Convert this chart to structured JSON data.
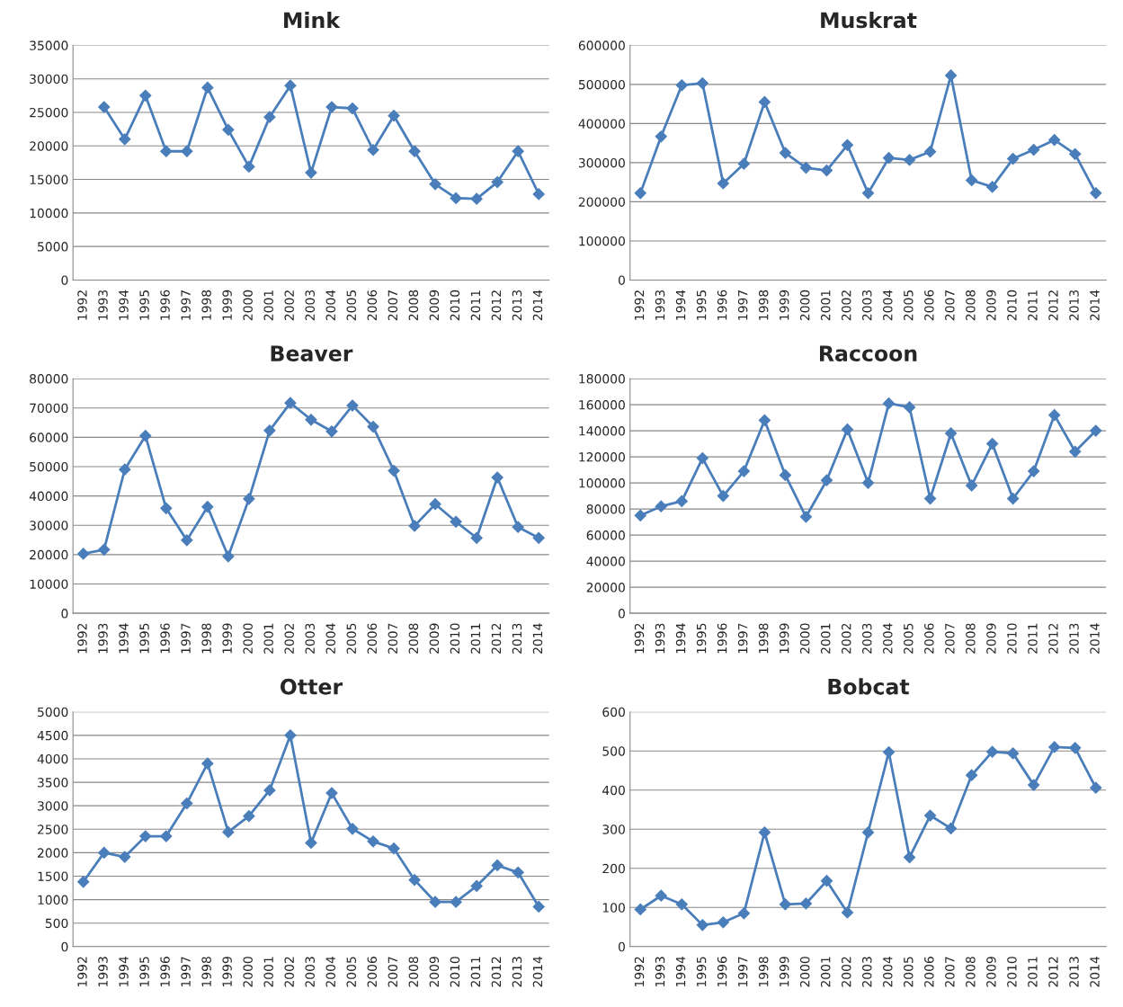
{
  "chart_data": [
    {
      "type": "line",
      "title": "Mink",
      "categories": [
        "1992",
        "1993",
        "1994",
        "1995",
        "1996",
        "1997",
        "1998",
        "1999",
        "2000",
        "2001",
        "2002",
        "2003",
        "2004",
        "2005",
        "2006",
        "2007",
        "2008",
        "2009",
        "2010",
        "2011",
        "2012",
        "2013",
        "2014"
      ],
      "series": [
        {
          "color": "#4a7ebb",
          "values": [
            null,
            25800,
            21000,
            27500,
            19200,
            19200,
            28700,
            22400,
            16900,
            24300,
            29000,
            16000,
            25800,
            25600,
            19400,
            24500,
            19200,
            14300,
            12200,
            12100,
            14600,
            19200,
            12800
          ]
        }
      ],
      "ylim": [
        0,
        35000
      ],
      "yticks": [
        0,
        5000,
        10000,
        15000,
        20000,
        25000,
        30000,
        35000
      ],
      "grid": "y",
      "marker": "diamond",
      "line_style": "solid"
    },
    {
      "type": "line",
      "title": "Muskrat",
      "categories": [
        "1992",
        "1993",
        "1994",
        "1995",
        "1996",
        "1997",
        "1998",
        "1999",
        "2000",
        "2001",
        "2002",
        "2003",
        "2004",
        "2005",
        "2006",
        "2007",
        "2008",
        "2009",
        "2010",
        "2011",
        "2012",
        "2013",
        "2014"
      ],
      "series": [
        {
          "color": "#4a7ebb",
          "values": [
            222000,
            367000,
            498000,
            503000,
            247000,
            297000,
            455000,
            325000,
            287000,
            280000,
            345000,
            222000,
            312000,
            307000,
            328000,
            523000,
            255000,
            238000,
            310000,
            333000,
            358000,
            322000,
            222000
          ]
        }
      ],
      "ylim": [
        0,
        600000
      ],
      "yticks": [
        0,
        100000,
        200000,
        300000,
        400000,
        500000,
        600000
      ],
      "grid": "y",
      "marker": "diamond",
      "line_style": "solid"
    },
    {
      "type": "line",
      "title": "Beaver",
      "categories": [
        "1992",
        "1993",
        "1994",
        "1995",
        "1996",
        "1997",
        "1998",
        "1999",
        "2000",
        "2001",
        "2002",
        "2003",
        "2004",
        "2005",
        "2006",
        "2007",
        "2008",
        "2009",
        "2010",
        "2011",
        "2012",
        "2013",
        "2014"
      ],
      "series": [
        {
          "color": "#4a7ebb",
          "values": [
            20300,
            21700,
            49000,
            60500,
            35800,
            24900,
            36300,
            19400,
            39000,
            62300,
            71700,
            66000,
            62000,
            70800,
            63600,
            48600,
            29800,
            37200,
            31200,
            25700,
            46300,
            29400,
            25700
          ]
        }
      ],
      "ylim": [
        0,
        80000
      ],
      "yticks": [
        0,
        10000,
        20000,
        30000,
        40000,
        50000,
        60000,
        70000,
        80000
      ],
      "grid": "y",
      "marker": "diamond",
      "line_style": "solid"
    },
    {
      "type": "line",
      "title": "Raccoon",
      "categories": [
        "1992",
        "1993",
        "1994",
        "1995",
        "1996",
        "1997",
        "1998",
        "1999",
        "2000",
        "2001",
        "2002",
        "2003",
        "2004",
        "2005",
        "2006",
        "2007",
        "2008",
        "2009",
        "2010",
        "2011",
        "2012",
        "2013",
        "2014"
      ],
      "series": [
        {
          "color": "#4a7ebb",
          "values": [
            75000,
            82000,
            86000,
            119000,
            90000,
            109000,
            148000,
            106000,
            74000,
            102000,
            141000,
            100000,
            161000,
            158000,
            88000,
            138000,
            98000,
            130000,
            88000,
            109000,
            152000,
            124000,
            140000
          ]
        }
      ],
      "ylim": [
        0,
        180000
      ],
      "yticks": [
        0,
        20000,
        40000,
        60000,
        80000,
        100000,
        120000,
        140000,
        160000,
        180000
      ],
      "grid": "y",
      "marker": "diamond",
      "line_style": "solid"
    },
    {
      "type": "line",
      "title": "Otter",
      "categories": [
        "1992",
        "1993",
        "1994",
        "1995",
        "1996",
        "1997",
        "1998",
        "1999",
        "2000",
        "2001",
        "2002",
        "2003",
        "2004",
        "2005",
        "2006",
        "2007",
        "2008",
        "2009",
        "2010",
        "2011",
        "2012",
        "2013",
        "2014"
      ],
      "series": [
        {
          "color": "#4a7ebb",
          "values": [
            1380,
            2000,
            1910,
            2350,
            2350,
            3050,
            3900,
            2440,
            2780,
            3330,
            4500,
            2210,
            3270,
            2510,
            2240,
            2090,
            1420,
            950,
            950,
            1290,
            1730,
            1580,
            850
          ]
        }
      ],
      "ylim": [
        0,
        5000
      ],
      "yticks": [
        0,
        500,
        1000,
        1500,
        2000,
        2500,
        3000,
        3500,
        4000,
        4500,
        5000
      ],
      "grid": "y",
      "marker": "diamond",
      "line_style": "solid"
    },
    {
      "type": "line",
      "title": "Bobcat",
      "categories": [
        "1992",
        "1993",
        "1994",
        "1995",
        "1996",
        "1997",
        "1998",
        "1999",
        "2000",
        "2001",
        "2002",
        "2003",
        "2004",
        "2005",
        "2006",
        "2007",
        "2008",
        "2009",
        "2010",
        "2011",
        "2012",
        "2013",
        "2014"
      ],
      "series": [
        {
          "color": "#4a7ebb",
          "values": [
            95,
            130,
            108,
            55,
            62,
            85,
            292,
            108,
            110,
            168,
            87,
            292,
            497,
            228,
            335,
            302,
            438,
            498,
            494,
            413,
            510,
            508,
            406
          ]
        }
      ],
      "ylim": [
        0,
        600
      ],
      "yticks": [
        0,
        100,
        200,
        300,
        400,
        500,
        600
      ],
      "grid": "y",
      "marker": "diamond",
      "line_style": "solid"
    }
  ]
}
